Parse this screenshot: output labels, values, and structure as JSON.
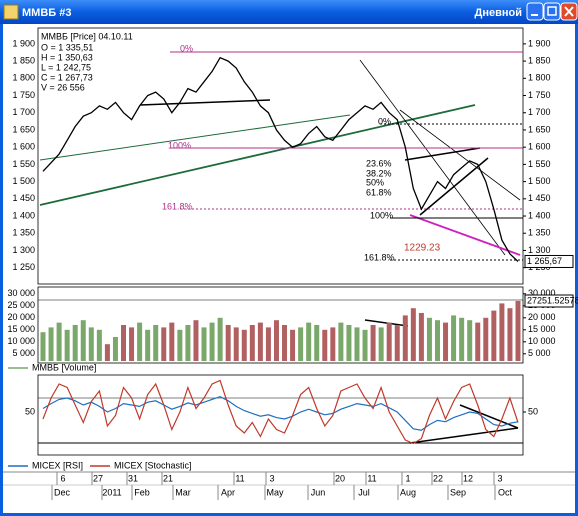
{
  "window": {
    "title": "MMBБ #3",
    "timeframe": "Дневной"
  },
  "chart_data": [
    {
      "type": "line",
      "title": "MMBБ [Price] 04.10.11",
      "quote": [
        "O = 1 335,51",
        "H = 1 350,63",
        "L = 1 242,75",
        "C = 1 267,73",
        "V = 26 556"
      ],
      "series": [
        {
          "name": "MMBБ [Price]",
          "color": "#000000",
          "values": [
            1530,
            1555,
            1580,
            1620,
            1660,
            1690,
            1700,
            1720,
            1710,
            1730,
            1700,
            1680,
            1720,
            1750,
            1760,
            1740,
            1700,
            1730,
            1770,
            1760,
            1790,
            1820,
            1860,
            1850,
            1830,
            1790,
            1760,
            1720,
            1700,
            1650,
            1620,
            1600,
            1610,
            1640,
            1660,
            1630,
            1620,
            1650,
            1680,
            1700,
            1720,
            1710,
            1730,
            1700,
            1680,
            1600,
            1480,
            1420,
            1460,
            1500,
            1480,
            1520,
            1540,
            1560,
            1550,
            1500,
            1420,
            1330,
            1290,
            1268
          ]
        }
      ],
      "ylim": [
        1220,
        1920
      ],
      "yticks": [
        {
          "value": 1900,
          "label": "1 900"
        },
        {
          "value": 1850,
          "label": "1 850"
        },
        {
          "value": 1800,
          "label": "1 800"
        },
        {
          "value": 1750,
          "label": "1 750"
        },
        {
          "value": 1700,
          "label": "1 700"
        },
        {
          "value": 1650,
          "label": "1 650"
        },
        {
          "value": 1600,
          "label": "1 600"
        },
        {
          "value": 1550,
          "label": "1 550"
        },
        {
          "value": 1500,
          "label": "1 500"
        },
        {
          "value": 1450,
          "label": "1 450"
        },
        {
          "value": 1400,
          "label": "1 400"
        },
        {
          "value": 1350,
          "label": "1 350"
        },
        {
          "value": 1300,
          "label": "1 300"
        },
        {
          "value": 1250,
          "label": "1 250"
        }
      ],
      "annotations": [
        "0%",
        "100%",
        "161.8%",
        "0%",
        "23.6%",
        "38.2%",
        "50%",
        "61.8%",
        "100%",
        "161.8%",
        "1229.23"
      ],
      "last_label": "1 265,67"
    },
    {
      "type": "bar",
      "series": [
        {
          "name": "MMBБ [Volume]",
          "color": "#7aa86a",
          "values": [
            14000,
            16000,
            18000,
            15000,
            17000,
            19000,
            16000,
            15000,
            9000,
            12000,
            17000,
            16000,
            18000,
            15000,
            17000,
            16000,
            18000,
            15000,
            17000,
            19000,
            16000,
            18000,
            20000,
            17000,
            16000,
            15000,
            17000,
            18000,
            16000,
            19000,
            17000,
            15000,
            16000,
            18000,
            17000,
            15000,
            16000,
            18000,
            17000,
            16000,
            15000,
            17000,
            16000,
            18000,
            17000,
            21000,
            24000,
            22000,
            20000,
            19000,
            18000,
            21000,
            20000,
            19000,
            18000,
            20000,
            23000,
            26000,
            24000,
            27000
          ]
        }
      ],
      "down_color": "#b06060",
      "ylim": [
        2000,
        32000
      ],
      "yticks": [
        {
          "value": 30000,
          "label": "30 000"
        },
        {
          "value": 25000,
          "label": "25 000"
        },
        {
          "value": 20000,
          "label": "20 000"
        },
        {
          "value": 15000,
          "label": "15 000"
        },
        {
          "value": 10000,
          "label": "10 000"
        },
        {
          "value": 5000,
          "label": "5 000"
        }
      ],
      "last_label": "27251.52578"
    },
    {
      "type": "line",
      "series": [
        {
          "name": "MICEX [RSI]",
          "color": "#1f6fc0",
          "values": [
            55,
            62,
            68,
            70,
            66,
            60,
            64,
            58,
            50,
            55,
            62,
            60,
            58,
            64,
            66,
            60,
            54,
            58,
            63,
            60,
            64,
            68,
            72,
            66,
            58,
            52,
            48,
            44,
            46,
            42,
            40,
            44,
            50,
            54,
            50,
            46,
            48,
            54,
            58,
            62,
            60,
            58,
            62,
            56,
            50,
            38,
            26,
            24,
            32,
            38,
            36,
            42,
            46,
            50,
            48,
            40,
            32,
            30,
            34,
            36
          ]
        },
        {
          "name": "MICEX [Stochastic]",
          "color": "#c0392b",
          "values": [
            40,
            70,
            90,
            85,
            60,
            35,
            65,
            80,
            30,
            45,
            85,
            70,
            40,
            75,
            90,
            60,
            25,
            50,
            85,
            55,
            70,
            90,
            95,
            60,
            30,
            20,
            35,
            15,
            40,
            25,
            20,
            45,
            75,
            85,
            55,
            30,
            45,
            80,
            85,
            90,
            70,
            55,
            85,
            50,
            30,
            10,
            5,
            12,
            45,
            70,
            40,
            65,
            85,
            90,
            60,
            25,
            15,
            40,
            70,
            35
          ]
        }
      ],
      "ylim": [
        0,
        100
      ],
      "yticks": [
        50
      ]
    }
  ],
  "dates": {
    "days": [
      "6",
      "27",
      "31",
      "21",
      "11",
      "3",
      "20",
      "11",
      "1",
      "22",
      "12",
      "3"
    ],
    "months": [
      "Dec",
      "2011",
      "Feb",
      "Mar",
      "Apr",
      "May",
      "Jun",
      "Jul",
      "Aug",
      "Sep",
      "Oct"
    ]
  }
}
